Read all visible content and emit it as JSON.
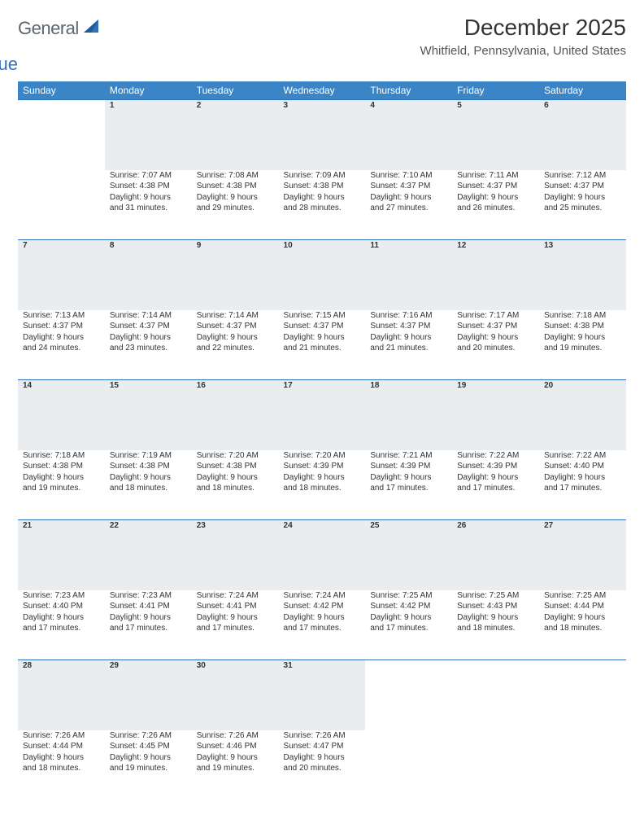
{
  "logo": {
    "word1": "General",
    "word2": "Blue",
    "sail_color": "#2f71b8"
  },
  "title": "December 2025",
  "location": "Whitfield, Pennsylvania, United States",
  "colors": {
    "header_bg": "#3b85c6",
    "header_text": "#ffffff",
    "daynum_bg": "#e9edf0",
    "daynum_border": "#2f71b8",
    "text": "#333333"
  },
  "weekdays": [
    "Sunday",
    "Monday",
    "Tuesday",
    "Wednesday",
    "Thursday",
    "Friday",
    "Saturday"
  ],
  "weeks": [
    [
      null,
      {
        "n": "1",
        "sr": "Sunrise: 7:07 AM",
        "ss": "Sunset: 4:38 PM",
        "d1": "Daylight: 9 hours",
        "d2": "and 31 minutes."
      },
      {
        "n": "2",
        "sr": "Sunrise: 7:08 AM",
        "ss": "Sunset: 4:38 PM",
        "d1": "Daylight: 9 hours",
        "d2": "and 29 minutes."
      },
      {
        "n": "3",
        "sr": "Sunrise: 7:09 AM",
        "ss": "Sunset: 4:38 PM",
        "d1": "Daylight: 9 hours",
        "d2": "and 28 minutes."
      },
      {
        "n": "4",
        "sr": "Sunrise: 7:10 AM",
        "ss": "Sunset: 4:37 PM",
        "d1": "Daylight: 9 hours",
        "d2": "and 27 minutes."
      },
      {
        "n": "5",
        "sr": "Sunrise: 7:11 AM",
        "ss": "Sunset: 4:37 PM",
        "d1": "Daylight: 9 hours",
        "d2": "and 26 minutes."
      },
      {
        "n": "6",
        "sr": "Sunrise: 7:12 AM",
        "ss": "Sunset: 4:37 PM",
        "d1": "Daylight: 9 hours",
        "d2": "and 25 minutes."
      }
    ],
    [
      {
        "n": "7",
        "sr": "Sunrise: 7:13 AM",
        "ss": "Sunset: 4:37 PM",
        "d1": "Daylight: 9 hours",
        "d2": "and 24 minutes."
      },
      {
        "n": "8",
        "sr": "Sunrise: 7:14 AM",
        "ss": "Sunset: 4:37 PM",
        "d1": "Daylight: 9 hours",
        "d2": "and 23 minutes."
      },
      {
        "n": "9",
        "sr": "Sunrise: 7:14 AM",
        "ss": "Sunset: 4:37 PM",
        "d1": "Daylight: 9 hours",
        "d2": "and 22 minutes."
      },
      {
        "n": "10",
        "sr": "Sunrise: 7:15 AM",
        "ss": "Sunset: 4:37 PM",
        "d1": "Daylight: 9 hours",
        "d2": "and 21 minutes."
      },
      {
        "n": "11",
        "sr": "Sunrise: 7:16 AM",
        "ss": "Sunset: 4:37 PM",
        "d1": "Daylight: 9 hours",
        "d2": "and 21 minutes."
      },
      {
        "n": "12",
        "sr": "Sunrise: 7:17 AM",
        "ss": "Sunset: 4:37 PM",
        "d1": "Daylight: 9 hours",
        "d2": "and 20 minutes."
      },
      {
        "n": "13",
        "sr": "Sunrise: 7:18 AM",
        "ss": "Sunset: 4:38 PM",
        "d1": "Daylight: 9 hours",
        "d2": "and 19 minutes."
      }
    ],
    [
      {
        "n": "14",
        "sr": "Sunrise: 7:18 AM",
        "ss": "Sunset: 4:38 PM",
        "d1": "Daylight: 9 hours",
        "d2": "and 19 minutes."
      },
      {
        "n": "15",
        "sr": "Sunrise: 7:19 AM",
        "ss": "Sunset: 4:38 PM",
        "d1": "Daylight: 9 hours",
        "d2": "and 18 minutes."
      },
      {
        "n": "16",
        "sr": "Sunrise: 7:20 AM",
        "ss": "Sunset: 4:38 PM",
        "d1": "Daylight: 9 hours",
        "d2": "and 18 minutes."
      },
      {
        "n": "17",
        "sr": "Sunrise: 7:20 AM",
        "ss": "Sunset: 4:39 PM",
        "d1": "Daylight: 9 hours",
        "d2": "and 18 minutes."
      },
      {
        "n": "18",
        "sr": "Sunrise: 7:21 AM",
        "ss": "Sunset: 4:39 PM",
        "d1": "Daylight: 9 hours",
        "d2": "and 17 minutes."
      },
      {
        "n": "19",
        "sr": "Sunrise: 7:22 AM",
        "ss": "Sunset: 4:39 PM",
        "d1": "Daylight: 9 hours",
        "d2": "and 17 minutes."
      },
      {
        "n": "20",
        "sr": "Sunrise: 7:22 AM",
        "ss": "Sunset: 4:40 PM",
        "d1": "Daylight: 9 hours",
        "d2": "and 17 minutes."
      }
    ],
    [
      {
        "n": "21",
        "sr": "Sunrise: 7:23 AM",
        "ss": "Sunset: 4:40 PM",
        "d1": "Daylight: 9 hours",
        "d2": "and 17 minutes."
      },
      {
        "n": "22",
        "sr": "Sunrise: 7:23 AM",
        "ss": "Sunset: 4:41 PM",
        "d1": "Daylight: 9 hours",
        "d2": "and 17 minutes."
      },
      {
        "n": "23",
        "sr": "Sunrise: 7:24 AM",
        "ss": "Sunset: 4:41 PM",
        "d1": "Daylight: 9 hours",
        "d2": "and 17 minutes."
      },
      {
        "n": "24",
        "sr": "Sunrise: 7:24 AM",
        "ss": "Sunset: 4:42 PM",
        "d1": "Daylight: 9 hours",
        "d2": "and 17 minutes."
      },
      {
        "n": "25",
        "sr": "Sunrise: 7:25 AM",
        "ss": "Sunset: 4:42 PM",
        "d1": "Daylight: 9 hours",
        "d2": "and 17 minutes."
      },
      {
        "n": "26",
        "sr": "Sunrise: 7:25 AM",
        "ss": "Sunset: 4:43 PM",
        "d1": "Daylight: 9 hours",
        "d2": "and 18 minutes."
      },
      {
        "n": "27",
        "sr": "Sunrise: 7:25 AM",
        "ss": "Sunset: 4:44 PM",
        "d1": "Daylight: 9 hours",
        "d2": "and 18 minutes."
      }
    ],
    [
      {
        "n": "28",
        "sr": "Sunrise: 7:26 AM",
        "ss": "Sunset: 4:44 PM",
        "d1": "Daylight: 9 hours",
        "d2": "and 18 minutes."
      },
      {
        "n": "29",
        "sr": "Sunrise: 7:26 AM",
        "ss": "Sunset: 4:45 PM",
        "d1": "Daylight: 9 hours",
        "d2": "and 19 minutes."
      },
      {
        "n": "30",
        "sr": "Sunrise: 7:26 AM",
        "ss": "Sunset: 4:46 PM",
        "d1": "Daylight: 9 hours",
        "d2": "and 19 minutes."
      },
      {
        "n": "31",
        "sr": "Sunrise: 7:26 AM",
        "ss": "Sunset: 4:47 PM",
        "d1": "Daylight: 9 hours",
        "d2": "and 20 minutes."
      },
      null,
      null,
      null
    ]
  ]
}
